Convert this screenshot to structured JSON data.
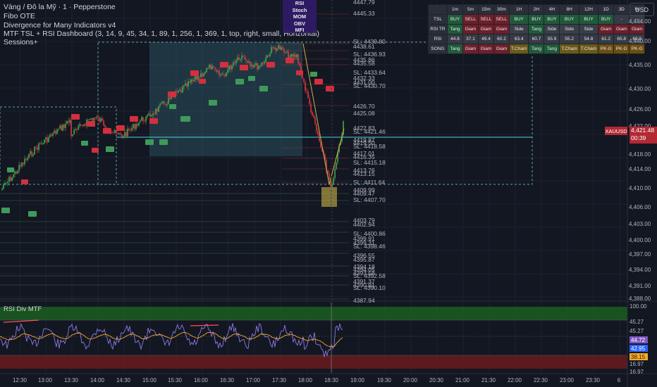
{
  "legend": {
    "symbol_line": "Vàng / Đô la Mỹ · 1 · Pepperstone",
    "ind1": "Fibo OTE",
    "ind2": "Divergence for Many Indicators v4",
    "ind3": "MTF TSL + RSI Dashboard (3, 14, 9, 45, 34, 1, 89, 1, 256, 1, 369, 1, top, right, small, Horizontal)",
    "ind4": "Sessions+"
  },
  "indicator_box": [
    "RSI",
    "Stoch",
    "MOM",
    "OBV",
    "MFI"
  ],
  "currency_button": "USD",
  "symbol_badge": "XAUUSD",
  "current_price": {
    "value": "4,421.48",
    "countdown": "00:39"
  },
  "price_axis": [
    "4,444.00",
    "4,440.00",
    "4,435.00",
    "4,430.00",
    "4,426.00",
    "4,422.00",
    "4,418.00",
    "4,414.00",
    "4,410.00",
    "4,406.00",
    "4,403.00",
    "4,400.00",
    "4,397.00",
    "4,394.00",
    "4,391.00",
    "4,388.00"
  ],
  "level_labels": [
    "4447.79",
    "4445.33",
    "SL: 4439.80",
    "4438.61",
    "SL: 4436.93",
    "4435.86",
    "4435.58",
    "SL: 4433.64",
    "4432.33",
    "4431.00",
    "SL: 4430.70",
    "4426.70",
    "4425.08",
    "4422.83",
    "SL: 4421.46",
    "4419.87",
    "4419.50",
    "SL: 4418.58",
    "4417.01",
    "4416.35",
    "SL: 4415.18",
    "4413.76",
    "4413.15",
    "SL: 4411.64",
    "4409.99",
    "4409.47",
    "SL: 4407.70",
    "4403.79",
    "4402.94",
    "SL: 4400.86",
    "4399.91",
    "4399.31",
    "SL: 4398.46",
    "4396.55",
    "4395.87",
    "4394.18",
    "4394.05",
    "4393.58",
    "SL: 4392.58",
    "4391.37",
    "4390.91",
    "SL: 4390.10",
    "4387.94"
  ],
  "dashboard": {
    "headers": [
      "",
      "1m",
      "5m",
      "15m",
      "30m",
      "1H",
      "2H",
      "4H",
      "8H",
      "12H",
      "1D",
      "3D",
      "W"
    ],
    "rows": [
      {
        "label": "TSL",
        "cells": [
          "BUY",
          "SELL",
          "SELL",
          "SELL",
          "BUY",
          "BUY",
          "BUY",
          "BUY",
          "BUY",
          "BUY",
          "-",
          "-"
        ]
      },
      {
        "label": "RSI TR",
        "cells": [
          "Tang",
          "Giam",
          "Giam",
          "Giam",
          "Side",
          "Tang",
          "Side",
          "Side",
          "Side",
          "Giam",
          "Giam",
          "Giam"
        ]
      },
      {
        "label": "RSI",
        "cells": [
          "44.8",
          "37.1",
          "49.4",
          "60.2",
          "63.4",
          "60.7",
          "55.9",
          "55.2",
          "54.8",
          "61.2",
          "65.8",
          "69.9"
        ]
      },
      {
        "label": "SONG",
        "cells": [
          "Tang",
          "Giam",
          "Giam",
          "Giam",
          "T.Cham",
          "Tang",
          "Tang",
          "T.Cham",
          "T.Cham",
          "PK-G",
          "PK-G",
          "PK-G"
        ]
      }
    ]
  },
  "time_axis": [
    "12:30",
    "13:00",
    "13:30",
    "14:00",
    "14:30",
    "15:00",
    "15:30",
    "16:00",
    "16:30",
    "17:00",
    "17:30",
    "18:00",
    "18:30",
    "19:00",
    "19:30",
    "20:00",
    "20:30",
    "21:00",
    "21:30",
    "22:00",
    "22:30",
    "23:00",
    "23:30",
    "6"
  ],
  "rsi_panel": {
    "title": "RSI Div MTF",
    "axis": [
      "100.00",
      "45.27",
      "45.27",
      "16.97",
      "16.97"
    ],
    "tags": [
      {
        "value": "44.72",
        "bg": "#7e57c2",
        "fg": "#ffffff"
      },
      {
        "value": "42.95",
        "bg": "#2962ff",
        "fg": "#ffffff"
      },
      {
        "value": "38.15",
        "bg": "#f9a825",
        "fg": "#131722"
      }
    ]
  },
  "colors": {
    "up": "#4caf50",
    "down": "#e53945",
    "rsi_line": "#8c7ae6",
    "rsi_ma": "#f9a825"
  }
}
